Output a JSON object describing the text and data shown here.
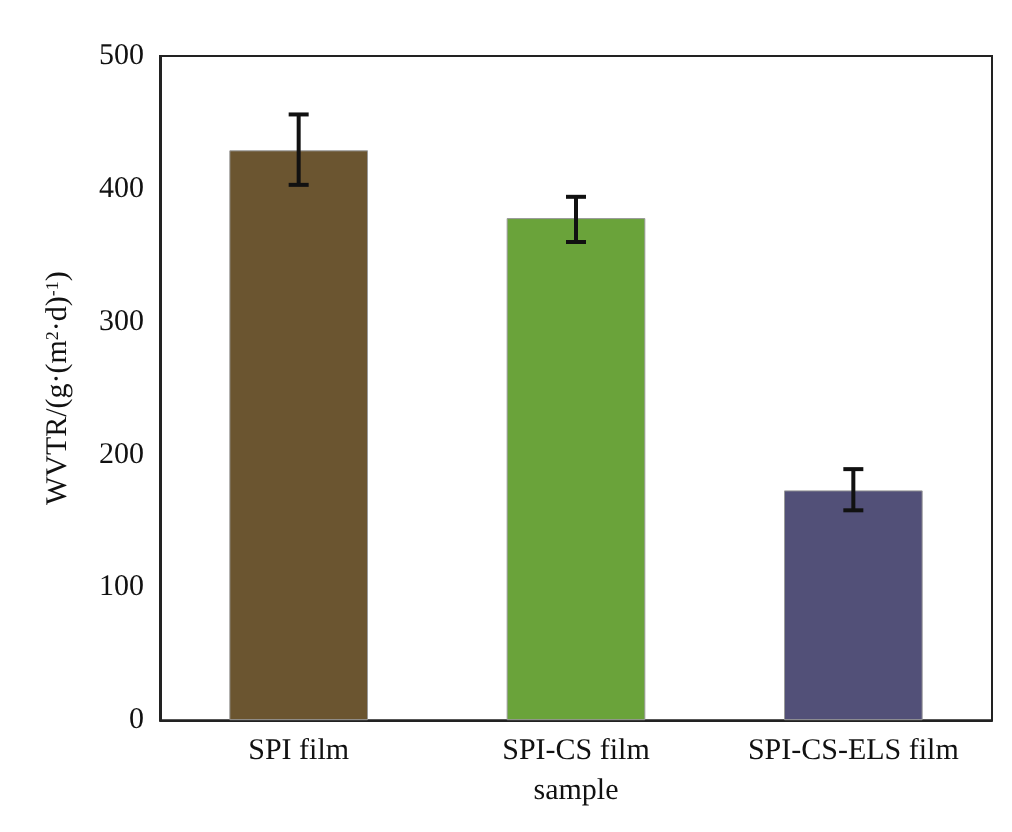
{
  "chart_data": {
    "type": "bar",
    "xlabel": "sample",
    "ylabel": "WVTR/(g·(m$^{2}$·d)$^{-1}$)",
    "categories": [
      "SPI film",
      "SPI-CS film",
      "SPI-CS-ELS film"
    ],
    "values": [
      429,
      378,
      173
    ],
    "colors": [
      "#6b5530",
      "#6aa33a",
      "#525078"
    ],
    "errors": [
      [
        403,
        456
      ],
      [
        360,
        394
      ],
      [
        158,
        189
      ]
    ],
    "ylim": [
      0,
      500
    ],
    "yticks": [
      0,
      100,
      200,
      300,
      400,
      500
    ],
    "grid": false
  }
}
